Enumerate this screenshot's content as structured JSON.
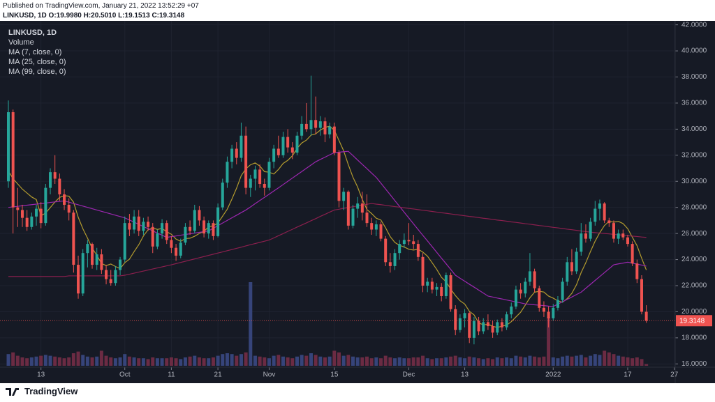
{
  "published": "Published on TradingView.com, January 21, 2022 13:52:29 +07",
  "brand": "TradingView",
  "chart_data": {
    "type": "candlestick",
    "header": "LINKUSD, 1D O:19.9980 H:20.5010 L:19.1513 C:19.3148",
    "symbol": "LINKUSD, 1D",
    "volume_label": "Volume",
    "up_color": "#26a69a",
    "down_color": "#ef5350",
    "volume_up_color": "#36447a",
    "volume_down_color": "#6b2b43",
    "grid": true,
    "xlim": [
      -1.8,
      143.2
    ],
    "xticks": [
      {
        "value": 7,
        "label": "13"
      },
      {
        "value": 25,
        "label": "Oct"
      },
      {
        "value": 35,
        "label": "11"
      },
      {
        "value": 45,
        "label": "21"
      },
      {
        "value": 56,
        "label": "Nov"
      },
      {
        "value": 70,
        "label": "15"
      },
      {
        "value": 86,
        "label": "Dec"
      },
      {
        "value": 98,
        "label": "13"
      },
      {
        "value": 117,
        "label": "2022"
      },
      {
        "value": 133,
        "label": "17"
      },
      {
        "value": 143,
        "label": "27"
      }
    ],
    "ylim": [
      15.75,
      42.3
    ],
    "yticks": [
      {
        "value": 16,
        "label": "16.0000"
      },
      {
        "value": 18,
        "label": "18.0000"
      },
      {
        "value": 20,
        "label": "20.0000"
      },
      {
        "value": 22,
        "label": "22.0000"
      },
      {
        "value": 24,
        "label": "24.0000"
      },
      {
        "value": 26,
        "label": "26.0000"
      },
      {
        "value": 28,
        "label": "28.0000"
      },
      {
        "value": 30,
        "label": "30.0000"
      },
      {
        "value": 32,
        "label": "32.0000"
      },
      {
        "value": 34,
        "label": "34.0000"
      },
      {
        "value": 36,
        "label": "36.0000"
      },
      {
        "value": 38,
        "label": "38.0000"
      },
      {
        "value": 40,
        "label": "40.0000"
      },
      {
        "value": 42,
        "label": "42.0000"
      }
    ],
    "open": [
      30.0,
      35.3,
      28.0,
      27.8,
      27.2,
      26.5,
      27.3,
      27.9,
      26.8,
      29.5,
      30.7,
      30.2,
      29.0,
      28.2,
      27.6,
      23.6,
      21.4,
      24.5,
      25.2,
      23.6,
      24.4,
      23.2,
      22.5,
      22.2,
      23.2,
      24.0,
      26.8,
      26.3,
      27.3,
      26.2,
      26.9,
      26.5,
      25.0,
      26.0,
      26.8,
      25.5,
      24.9,
      24.3,
      25.3,
      26.5,
      26.2,
      27.8,
      27.0,
      26.0,
      26.8,
      25.8,
      28.0,
      29.9,
      31.5,
      32.5,
      31.8,
      33.5,
      29.5,
      30.2,
      30.9,
      29.8,
      29.5,
      31.5,
      32.5,
      32.0,
      33.4,
      32.6,
      32.2,
      33.5,
      34.4,
      34.0,
      34.7,
      34.1,
      34.6,
      33.6,
      34.2,
      32.2,
      28.5,
      29.2,
      26.6,
      27.9,
      28.3,
      27.6,
      26.8,
      26.3,
      26.7,
      25.6,
      23.8,
      23.5,
      24.5,
      25.2,
      25.5,
      25.4,
      25.2,
      24.2,
      22.0,
      22.3,
      21.7,
      21.9,
      21.2,
      22.8,
      20.2,
      18.6,
      19.5,
      19.9,
      18.0,
      19.3,
      18.5,
      19.2,
      18.9,
      18.4,
      19.2,
      18.8,
      19.8,
      20.4,
      21.7,
      21.4,
      22.3,
      23.1,
      21.8,
      20.3,
      20.0,
      19.5,
      20.3,
      20.9,
      22.3,
      23.8,
      23.1,
      24.6,
      26.0,
      25.6,
      26.9,
      27.9,
      28.3,
      27.0,
      26.8,
      25.6,
      26.0,
      25.7,
      25.2,
      23.7,
      22.5,
      19.998
    ],
    "high": [
      36.2,
      35.5,
      29.5,
      28.2,
      27.8,
      27.6,
      28.2,
      28.4,
      29.8,
      31.0,
      32.0,
      30.6,
      29.4,
      28.7,
      27.8,
      24.3,
      24.8,
      25.5,
      25.3,
      24.9,
      24.8,
      23.6,
      23.2,
      23.5,
      24.2,
      27.3,
      27.5,
      27.8,
      27.8,
      27.2,
      27.3,
      26.8,
      26.3,
      27.1,
      27.0,
      25.8,
      25.2,
      25.6,
      26.8,
      27.0,
      28.2,
      28.1,
      27.3,
      27.0,
      27.0,
      28.3,
      30.2,
      31.9,
      32.8,
      33.0,
      34.5,
      34.2,
      30.5,
      31.2,
      31.3,
      30.2,
      31.8,
      32.8,
      33.5,
      33.8,
      34.0,
      33.0,
      33.8,
      35.0,
      36.0,
      38.1,
      36.5,
      35.0,
      34.9,
      34.5,
      34.5,
      32.4,
      29.5,
      29.3,
      28.2,
      28.8,
      29.2,
      29.0,
      27.2,
      27.0,
      26.9,
      25.8,
      24.5,
      24.8,
      25.5,
      26.0,
      26.8,
      25.9,
      25.5,
      24.5,
      22.6,
      22.6,
      22.2,
      22.2,
      23.0,
      23.0,
      20.5,
      19.8,
      20.2,
      20.0,
      19.6,
      19.6,
      19.5,
      19.8,
      19.3,
      19.4,
      19.5,
      20.0,
      20.7,
      22.0,
      22.2,
      22.6,
      24.5,
      23.3,
      22.0,
      20.8,
      20.4,
      20.6,
      21.2,
      22.6,
      24.2,
      24.8,
      24.9,
      26.8,
      26.7,
      27.2,
      28.5,
      28.6,
      28.4,
      27.2,
      27.0,
      26.3,
      26.3,
      25.9,
      25.4,
      24.0,
      22.8,
      20.501
    ],
    "low": [
      29.5,
      26.0,
      26.5,
      26.5,
      26.2,
      26.3,
      26.6,
      26.4,
      26.6,
      29.0,
      29.8,
      28.5,
      27.8,
      27.0,
      23.0,
      21.0,
      21.2,
      23.4,
      23.3,
      23.2,
      22.9,
      22.1,
      22.0,
      22.0,
      22.8,
      23.8,
      25.8,
      26.0,
      25.8,
      25.9,
      26.2,
      24.5,
      24.8,
      25.6,
      25.2,
      24.5,
      23.9,
      24.1,
      25.1,
      25.9,
      26.0,
      26.6,
      25.7,
      25.6,
      25.5,
      25.7,
      27.8,
      29.5,
      31.0,
      31.3,
      31.5,
      29.0,
      28.8,
      29.3,
      29.5,
      28.9,
      29.3,
      31.0,
      31.8,
      31.8,
      32.2,
      31.7,
      32.0,
      33.2,
      33.8,
      33.5,
      33.6,
      33.5,
      33.0,
      33.3,
      32.0,
      28.0,
      27.8,
      26.3,
      26.4,
      27.2,
      27.0,
      26.5,
      25.9,
      25.8,
      25.4,
      23.5,
      23.0,
      23.2,
      24.0,
      24.9,
      25.1,
      24.8,
      23.9,
      21.5,
      21.5,
      21.4,
      21.2,
      20.8,
      21.0,
      20.0,
      18.2,
      18.4,
      18.8,
      17.6,
      17.5,
      18.2,
      18.3,
      18.6,
      18.0,
      18.2,
      18.5,
      18.6,
      19.5,
      20.2,
      21.0,
      21.1,
      22.0,
      21.5,
      20.0,
      19.6,
      18.8,
      19.3,
      20.1,
      20.7,
      22.0,
      22.8,
      22.9,
      24.3,
      25.3,
      25.4,
      26.6,
      27.0,
      26.8,
      26.5,
      25.3,
      25.2,
      25.5,
      25.0,
      23.5,
      22.2,
      19.8,
      19.1513
    ],
    "close": [
      35.3,
      28.0,
      27.8,
      27.2,
      26.5,
      27.3,
      27.9,
      26.8,
      29.5,
      30.7,
      30.2,
      29.0,
      28.2,
      27.6,
      23.6,
      21.4,
      24.5,
      25.2,
      23.6,
      24.4,
      23.2,
      22.5,
      22.2,
      23.2,
      24.0,
      26.8,
      26.3,
      27.3,
      26.2,
      26.9,
      26.5,
      25.0,
      26.0,
      26.8,
      25.5,
      24.9,
      24.3,
      25.3,
      26.5,
      26.2,
      27.8,
      27.0,
      26.0,
      26.8,
      25.8,
      28.0,
      29.9,
      31.5,
      32.5,
      31.8,
      33.5,
      29.5,
      30.2,
      30.9,
      29.8,
      29.5,
      31.5,
      32.5,
      32.0,
      33.4,
      32.6,
      32.2,
      33.5,
      34.4,
      34.0,
      34.7,
      34.1,
      34.6,
      33.6,
      34.2,
      32.2,
      28.5,
      29.2,
      26.6,
      27.9,
      28.3,
      27.6,
      26.8,
      26.3,
      26.7,
      25.6,
      23.8,
      23.5,
      24.5,
      25.2,
      25.5,
      25.4,
      25.2,
      24.2,
      22.0,
      22.3,
      21.7,
      21.9,
      21.2,
      22.8,
      20.2,
      18.6,
      19.5,
      19.9,
      18.0,
      19.3,
      18.5,
      19.2,
      18.9,
      18.4,
      19.2,
      18.8,
      19.8,
      20.4,
      21.7,
      21.4,
      22.3,
      23.1,
      21.8,
      20.3,
      20.0,
      19.5,
      20.3,
      20.9,
      22.3,
      23.8,
      23.1,
      24.6,
      26.0,
      25.6,
      26.9,
      27.9,
      28.3,
      27.0,
      26.8,
      25.6,
      26.0,
      25.7,
      25.2,
      23.7,
      22.5,
      20.0,
      19.3148
    ],
    "volume": [
      14,
      16,
      12,
      10,
      9,
      10,
      11,
      12,
      13,
      12,
      11,
      10,
      9,
      10,
      15,
      17,
      13,
      11,
      10,
      11,
      18,
      12,
      10,
      9,
      10,
      14,
      11,
      10,
      9,
      9,
      8,
      10,
      9,
      9,
      9,
      10,
      9,
      8,
      10,
      11,
      12,
      10,
      9,
      9,
      10,
      12,
      14,
      15,
      14,
      12,
      14,
      16,
      100,
      12,
      11,
      10,
      9,
      12,
      13,
      11,
      10,
      9,
      11,
      13,
      12,
      15,
      13,
      11,
      10,
      11,
      18,
      16,
      12,
      13,
      11,
      10,
      10,
      11,
      9,
      10,
      9,
      12,
      10,
      9,
      10,
      9,
      9,
      10,
      10,
      12,
      9,
      8,
      9,
      9,
      10,
      11,
      12,
      10,
      9,
      11,
      10,
      9,
      8,
      9,
      8,
      10,
      9,
      10,
      9,
      12,
      11,
      10,
      12,
      11,
      10,
      11,
      58,
      10,
      9,
      11,
      12,
      11,
      12,
      13,
      10,
      12,
      14,
      13,
      18,
      16,
      14,
      12,
      11,
      10,
      9,
      10,
      8,
      2
    ],
    "series": [
      {
        "name": "MA (7, close, 0)",
        "color": "#b39b2e",
        "values": [
          30.8,
          30.2,
          29.8,
          29.4,
          29.1,
          28.8,
          28.6,
          27.36,
          27.57,
          27.99,
          28.41,
          28.77,
          28.9,
          28.86,
          28.4,
          27.24,
          26.36,
          25.64,
          24.87,
          24.33,
          23.7,
          23.54,
          23.66,
          23.47,
          23.3,
          23.76,
          24.03,
          24.61,
          25.14,
          25.81,
          26.29,
          26.43,
          26.31,
          26.39,
          26.13,
          25.94,
          25.57,
          25.4,
          25.61,
          25.64,
          25.79,
          26.0,
          26.16,
          26.51,
          26.59,
          26.8,
          27.33,
          27.86,
          28.64,
          29.47,
          30.43,
          30.96,
          31.27,
          31.41,
          31.17,
          30.74,
          30.7,
          30.56,
          30.91,
          31.37,
          31.61,
          31.96,
          32.53,
          32.94,
          33.16,
          33.54,
          33.64,
          33.93,
          34.13,
          34.23,
          33.91,
          33.13,
          32.34,
          31.27,
          30.31,
          29.56,
          28.61,
          27.84,
          27.53,
          27.17,
          27.03,
          26.44,
          25.76,
          25.31,
          25.09,
          24.97,
          24.79,
          24.73,
          24.79,
          24.57,
          24.26,
          23.76,
          23.24,
          22.64,
          22.3,
          21.73,
          21.24,
          20.84,
          20.59,
          20.03,
          19.76,
          19.14,
          19.0,
          19.04,
          18.89,
          18.79,
          18.9,
          18.97,
          19.24,
          19.6,
          19.96,
          20.51,
          21.07,
          21.5,
          21.57,
          21.51,
          21.2,
          21.04,
          20.84,
          20.73,
          21.01,
          21.41,
          22.07,
          23.0,
          23.76,
          24.61,
          25.41,
          26.06,
          26.61,
          26.93,
          26.87,
          26.93,
          26.76,
          26.37,
          25.71,
          25.07,
          24.1,
          23.2
        ]
      },
      {
        "name": "MA (25, close, 0)",
        "color": "#9c27b0",
        "values": [
          28.0,
          28.04,
          28.08,
          28.13,
          28.17,
          28.21,
          28.25,
          28.29,
          28.33,
          28.38,
          28.42,
          28.46,
          28.5,
          28.4,
          28.3,
          28.2,
          28.1,
          28.0,
          27.9,
          27.8,
          27.7,
          27.6,
          27.5,
          27.4,
          27.3,
          27.2,
          27.03,
          26.87,
          26.7,
          26.53,
          26.37,
          26.2,
          26.03,
          25.87,
          25.7,
          25.76,
          25.81,
          25.87,
          25.92,
          25.98,
          26.03,
          26.09,
          26.14,
          26.2,
          26.4,
          26.6,
          26.8,
          27.0,
          27.2,
          27.4,
          27.6,
          27.8,
          28.04,
          28.29,
          28.53,
          28.77,
          29.01,
          29.26,
          29.5,
          29.75,
          30.0,
          30.25,
          30.5,
          30.75,
          31.0,
          31.25,
          31.5,
          31.68,
          31.85,
          32.03,
          32.2,
          32.23,
          32.27,
          32.3,
          31.97,
          31.63,
          31.3,
          30.97,
          30.63,
          30.3,
          29.86,
          29.41,
          28.97,
          28.52,
          28.08,
          27.63,
          27.19,
          26.74,
          26.3,
          25.86,
          25.43,
          24.99,
          24.55,
          24.11,
          23.68,
          23.24,
          22.8,
          22.57,
          22.34,
          22.11,
          21.89,
          21.66,
          21.43,
          21.2,
          21.13,
          21.05,
          20.98,
          20.9,
          20.83,
          20.75,
          20.68,
          20.6,
          20.57,
          20.53,
          20.5,
          20.47,
          20.43,
          20.4,
          20.58,
          20.77,
          20.95,
          21.13,
          21.32,
          21.5,
          21.8,
          22.1,
          22.4,
          22.7,
          23.0,
          23.3,
          23.6,
          23.67,
          23.73,
          23.8,
          23.73,
          23.65,
          23.58,
          23.5
        ]
      },
      {
        "name": "MA (99, close, 0)",
        "color": "#8c1f4e",
        "values": [
          22.7,
          22.7,
          22.7,
          22.7,
          22.7,
          22.7,
          22.7,
          22.7,
          22.7,
          22.7,
          22.7,
          22.7,
          22.7,
          22.75,
          22.75,
          22.75,
          22.75,
          22.75,
          22.75,
          22.75,
          22.75,
          22.75,
          22.75,
          22.75,
          22.75,
          22.8,
          22.88,
          22.96,
          23.04,
          23.12,
          23.2,
          23.28,
          23.36,
          23.44,
          23.52,
          23.6,
          23.69,
          23.78,
          23.87,
          23.96,
          24.05,
          24.14,
          24.23,
          24.32,
          24.41,
          24.5,
          24.59,
          24.68,
          24.77,
          24.86,
          24.95,
          25.05,
          25.14,
          25.23,
          25.32,
          25.41,
          25.5,
          25.66,
          25.83,
          25.99,
          26.16,
          26.32,
          26.49,
          26.65,
          26.81,
          26.98,
          27.14,
          27.31,
          27.47,
          27.64,
          27.8,
          27.86,
          27.93,
          27.99,
          28.05,
          28.11,
          28.18,
          28.24,
          28.3,
          28.25,
          28.21,
          28.16,
          28.11,
          28.06,
          28.02,
          27.97,
          27.92,
          27.88,
          27.83,
          27.78,
          27.74,
          27.69,
          27.64,
          27.59,
          27.55,
          27.5,
          27.45,
          27.41,
          27.36,
          27.31,
          27.27,
          27.22,
          27.17,
          27.13,
          27.08,
          27.03,
          26.99,
          26.94,
          26.89,
          26.85,
          26.8,
          26.75,
          26.71,
          26.66,
          26.61,
          26.57,
          26.52,
          26.47,
          26.43,
          26.38,
          26.33,
          26.29,
          26.24,
          26.19,
          26.15,
          26.1,
          26.07,
          26.03,
          26.0,
          25.97,
          25.93,
          25.9,
          25.87,
          25.83,
          25.8,
          25.77,
          25.73,
          25.7
        ]
      }
    ]
  }
}
